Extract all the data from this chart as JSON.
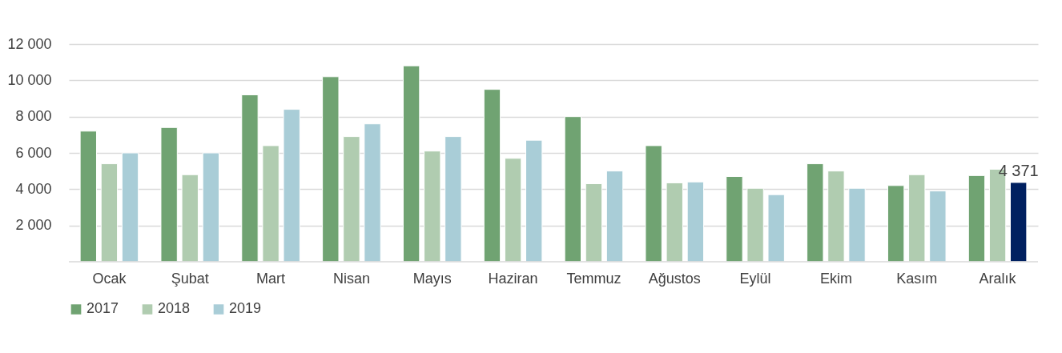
{
  "chart_data": {
    "type": "bar",
    "categories": [
      "Ocak",
      "Şubat",
      "Mart",
      "Nisan",
      "Mayıs",
      "Haziran",
      "Temmuz",
      "Ağustos",
      "Eylül",
      "Ekim",
      "Kasım",
      "Aralık"
    ],
    "series": [
      {
        "name": "2017",
        "color": "#70a372",
        "values": [
          7200,
          7400,
          9200,
          10200,
          10800,
          9500,
          8000,
          6400,
          4700,
          5400,
          4200,
          4750
        ]
      },
      {
        "name": "2018",
        "color": "#b0ccb0",
        "values": [
          5400,
          4800,
          6400,
          6900,
          6100,
          5700,
          4300,
          4350,
          4050,
          5000,
          4800,
          5100
        ]
      },
      {
        "name": "2019",
        "color": "#a9cdd7",
        "colors": [
          "#a9cdd7",
          "#a9cdd7",
          "#a9cdd7",
          "#a9cdd7",
          "#a9cdd7",
          "#a9cdd7",
          "#a9cdd7",
          "#a9cdd7",
          "#a9cdd7",
          "#a9cdd7",
          "#a9cdd7",
          "#002060"
        ],
        "values": [
          6000,
          6000,
          8400,
          7600,
          6900,
          6700,
          5000,
          4400,
          3700,
          4050,
          3900,
          4371
        ],
        "value_labels": [
          null,
          null,
          null,
          null,
          null,
          null,
          null,
          null,
          null,
          null,
          null,
          "4 371"
        ]
      }
    ],
    "ylim": [
      0,
      12000
    ],
    "yticks": [
      {
        "value": 2000,
        "label": "2 000"
      },
      {
        "value": 4000,
        "label": "4 000"
      },
      {
        "value": 6000,
        "label": "6 000"
      },
      {
        "value": 8000,
        "label": "8 000"
      },
      {
        "value": 10000,
        "label": "10 000"
      },
      {
        "value": 12000,
        "label": "12 000"
      }
    ],
    "grid": "y",
    "legend": "bottom"
  }
}
